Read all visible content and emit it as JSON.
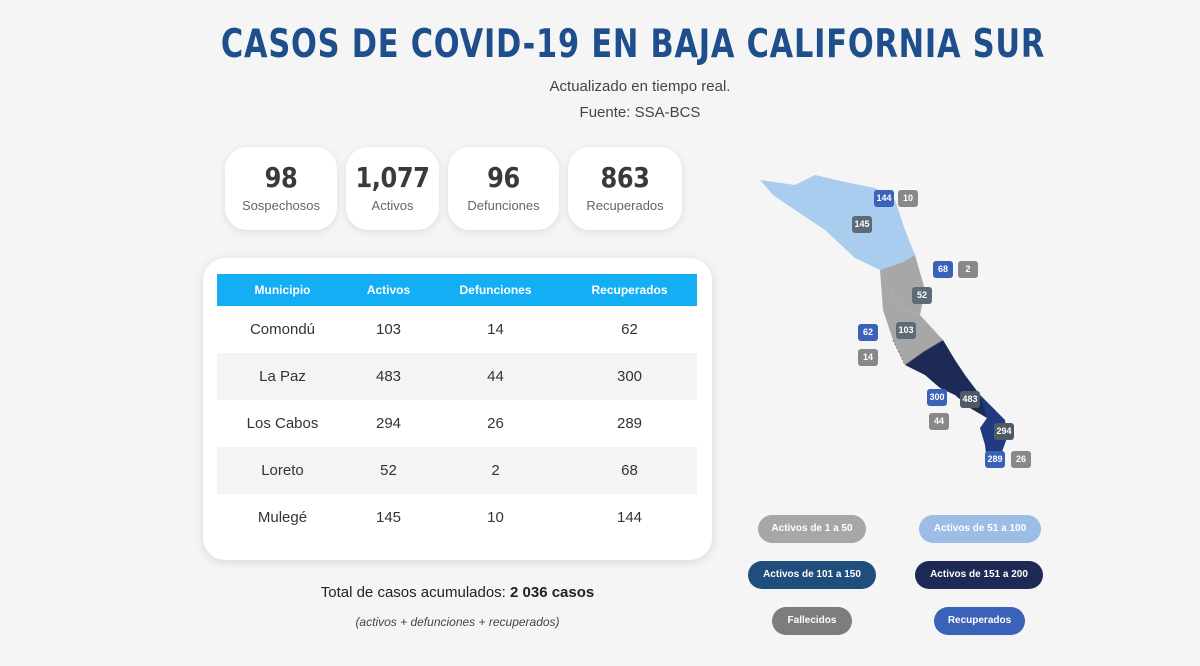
{
  "header": {
    "title": "CASOS DE COVID-19 EN BAJA CALIFORNIA SUR",
    "subtitle": "Actualizado en tiempo real.",
    "source": "Fuente: SSA-BCS"
  },
  "stats": [
    {
      "value": "98",
      "label": "Sospechosos"
    },
    {
      "value": "1,077",
      "label": "Activos"
    },
    {
      "value": "96",
      "label": "Defunciones"
    },
    {
      "value": "863",
      "label": "Recuperados"
    }
  ],
  "table": {
    "headers": [
      "Municipio",
      "Activos",
      "Defunciones",
      "Recuperados"
    ],
    "rows": [
      {
        "municipio": "Comondú",
        "activos": "103",
        "defunciones": "14",
        "recuperados": "62"
      },
      {
        "municipio": "La Paz",
        "activos": "483",
        "defunciones": "44",
        "recuperados": "300"
      },
      {
        "municipio": "Los Cabos",
        "activos": "294",
        "defunciones": "26",
        "recuperados": "289"
      },
      {
        "municipio": "Loreto",
        "activos": "52",
        "defunciones": "2",
        "recuperados": "68"
      },
      {
        "municipio": "Mulegé",
        "activos": "145",
        "defunciones": "10",
        "recuperados": "144"
      }
    ]
  },
  "totals": {
    "label": "Total de casos acumulados: ",
    "value": "2 036 casos",
    "note": "(activos + defunciones + recuperados)"
  },
  "map": {
    "badges": {
      "mulege_recuperados": "144",
      "mulege_defunciones": "10",
      "mulege_activos": "145",
      "loreto_recuperados": "68",
      "loreto_defunciones": "2",
      "loreto_activos": "52",
      "comondu_recuperados": "62",
      "comondu_activos": "103",
      "comondu_defunciones": "14",
      "lapaz_recuperados": "300",
      "lapaz_activos": "483",
      "lapaz_defunciones": "44",
      "loscabos_activos": "294",
      "loscabos_recuperados": "289",
      "loscabos_defunciones": "26"
    },
    "colors": {
      "range_1_50": "#a7a7a7",
      "range_51_100": "#9bbde6",
      "range_101_150": "#1f4e7d",
      "range_151_200": "#1c2a55",
      "fallecidos": "#7d7d7d",
      "recuperados": "#3a62b8"
    }
  },
  "legend": [
    {
      "label": "Activos de 1 a 50"
    },
    {
      "label": "Activos de 51 a 100"
    },
    {
      "label": "Activos de 101 a 150"
    },
    {
      "label": "Activos de 151 a 200"
    },
    {
      "label": "Fallecidos"
    },
    {
      "label": "Recuperados"
    }
  ]
}
